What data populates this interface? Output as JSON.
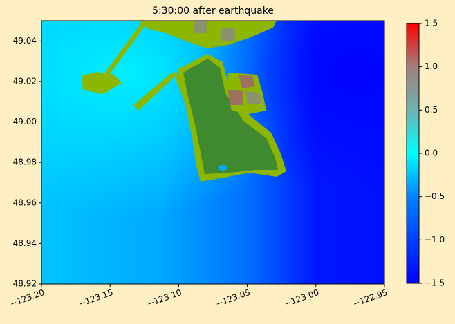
{
  "chart_data": {
    "type": "heatmap",
    "title": "5:30:00 after earthquake",
    "xlim": [
      -123.2,
      -122.95
    ],
    "xticks": [
      {
        "value": -123.2,
        "label": "−123.20"
      },
      {
        "value": -123.15,
        "label": "−123.15"
      },
      {
        "value": -123.1,
        "label": "−123.10"
      },
      {
        "value": -123.05,
        "label": "−123.05"
      },
      {
        "value": -123.0,
        "label": "−123.00"
      },
      {
        "value": -122.95,
        "label": "−122.95"
      }
    ],
    "ylim": [
      48.92,
      49.05
    ],
    "yticks": [
      48.92,
      48.94,
      48.96,
      48.98,
      {
        "value": 49.0,
        "label": "49.00"
      },
      49.02,
      49.04
    ],
    "colorbar": {
      "lim": [
        -1.5,
        1.5
      ],
      "ticks": [
        {
          "value": -1.5,
          "label": "−1.5"
        },
        {
          "value": -1.0,
          "label": "−1.0"
        },
        {
          "value": -0.5,
          "label": "−0.5"
        },
        {
          "value": 0.0,
          "label": "0.0"
        },
        0.5,
        {
          "value": 1.0,
          "label": "1.0"
        },
        1.5
      ]
    }
  }
}
